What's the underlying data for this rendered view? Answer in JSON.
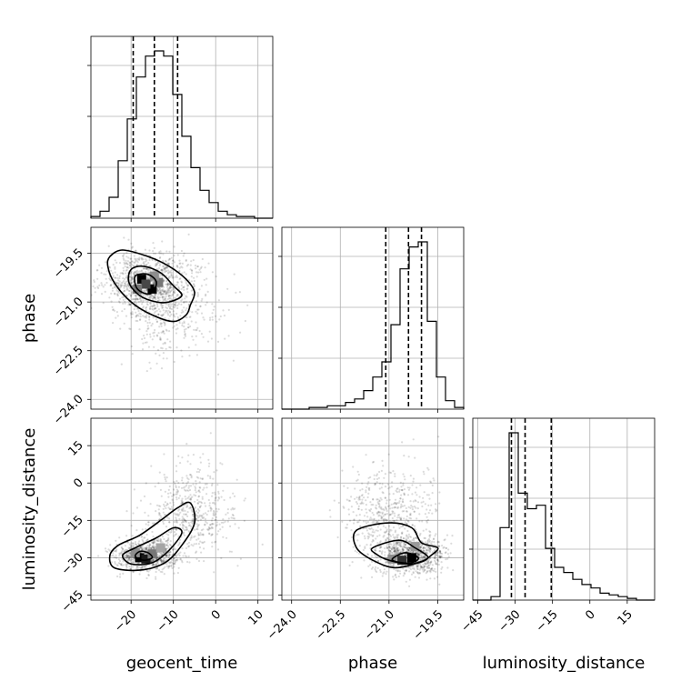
{
  "chart_data": {
    "type": "corner",
    "parameters": [
      "geocent_time",
      "phase",
      "luminosity_distance"
    ],
    "ranges": {
      "geocent_time": [
        -29.5,
        13.5
      ],
      "phase": [
        -24.3,
        -18.7
      ],
      "luminosity_distance": [
        -47.0,
        26.0
      ]
    },
    "ticks": {
      "geocent_time": [
        -20,
        -10,
        0,
        10
      ],
      "phase": [
        -24.0,
        -22.5,
        -21.0,
        -19.5
      ],
      "luminosity_distance": [
        -45,
        -30,
        -15,
        0,
        15
      ]
    },
    "tick_labels": {
      "geocent_time": [
        "−20",
        "−10",
        "0",
        "10"
      ],
      "phase": [
        "−24.0",
        "−22.5",
        "−21.0",
        "−19.5"
      ],
      "luminosity_distance": [
        "−45",
        "−30",
        "−15",
        "0",
        "15"
      ]
    },
    "quantiles": {
      "geocent_time": [
        -19.5,
        -14.5,
        -9.0
      ],
      "phase": [
        -21.1,
        -20.4,
        -20.0
      ],
      "luminosity_distance": [
        -31.5,
        -26.0,
        -15.5
      ]
    },
    "histograms": {
      "geocent_time": {
        "edges": [
          -29.5,
          -27.35,
          -25.2,
          -23.05,
          -20.9,
          -18.75,
          -16.6,
          -14.45,
          -12.3,
          -10.15,
          -8.0,
          -5.85,
          -3.7,
          -1.55,
          0.6,
          2.75,
          4.9,
          7.05,
          9.2,
          11.35,
          13.5
        ],
        "counts": [
          0.01,
          0.04,
          0.12,
          0.33,
          0.57,
          0.81,
          0.93,
          0.96,
          0.93,
          0.71,
          0.47,
          0.29,
          0.16,
          0.09,
          0.04,
          0.02,
          0.01,
          0.01,
          0.0,
          0.0
        ]
      },
      "phase": {
        "edges": [
          -24.3,
          -24.02,
          -23.74,
          -23.46,
          -23.18,
          -22.9,
          -22.62,
          -22.34,
          -22.06,
          -21.78,
          -21.5,
          -21.22,
          -20.94,
          -20.66,
          -20.38,
          -20.1,
          -19.82,
          -19.54,
          -19.26,
          -18.98,
          -18.7
        ],
        "counts": [
          0.0,
          0.0,
          0.0,
          0.01,
          0.01,
          0.02,
          0.02,
          0.04,
          0.06,
          0.11,
          0.19,
          0.28,
          0.5,
          0.83,
          0.96,
          0.99,
          0.52,
          0.19,
          0.05,
          0.01
        ]
      },
      "luminosity_distance": {
        "edges": [
          -47.0,
          -43.35,
          -39.7,
          -36.05,
          -32.4,
          -28.75,
          -25.1,
          -21.45,
          -17.8,
          -14.15,
          -10.5,
          -6.85,
          -3.2,
          0.45,
          4.1,
          7.75,
          11.4,
          15.05,
          18.7,
          22.35,
          26.0
        ],
        "counts": [
          0.0,
          0.0,
          0.02,
          0.42,
          0.97,
          0.62,
          0.53,
          0.55,
          0.3,
          0.19,
          0.16,
          0.12,
          0.09,
          0.07,
          0.04,
          0.03,
          0.02,
          0.01,
          0.0,
          0.0
        ]
      }
    },
    "scatter_2d": {
      "phase_vs_geocent_time": {
        "modes": [
          {
            "x": -16.0,
            "y": -20.4,
            "sx": 5.0,
            "sy": 0.45,
            "w": 0.7
          },
          {
            "x": -11.0,
            "y": -21.2,
            "sx": 6.0,
            "sy": 0.75,
            "w": 0.3
          }
        ],
        "contours": [
          [
            [
              -25.0,
              -19.6
            ],
            [
              -22.0,
              -19.4
            ],
            [
              -16.0,
              -19.6
            ],
            [
              -11.0,
              -19.9
            ],
            [
              -7.0,
              -20.3
            ],
            [
              -5.0,
              -20.7
            ],
            [
              -6.0,
              -21.1
            ],
            [
              -7.0,
              -21.4
            ],
            [
              -10.0,
              -21.6
            ],
            [
              -15.0,
              -21.4
            ],
            [
              -20.0,
              -21.0
            ],
            [
              -24.0,
              -20.4
            ],
            [
              -25.5,
              -19.9
            ]
          ],
          [
            [
              -20.0,
              -20.0
            ],
            [
              -17.0,
              -19.9
            ],
            [
              -13.0,
              -20.1
            ],
            [
              -10.0,
              -20.5
            ],
            [
              -8.0,
              -20.8
            ],
            [
              -11.0,
              -21.0
            ],
            [
              -14.0,
              -21.0
            ],
            [
              -18.0,
              -20.8
            ],
            [
              -20.5,
              -20.4
            ]
          ],
          [
            [
              -19.0,
              -20.2
            ],
            [
              -16.0,
              -20.15
            ],
            [
              -14.0,
              -20.4
            ],
            [
              -15.5,
              -20.75
            ],
            [
              -18.5,
              -20.6
            ]
          ]
        ],
        "hot_cells": [
          [
            -17.5,
            -20.3,
            1.0
          ],
          [
            -15.0,
            -20.6,
            1.0
          ],
          [
            -16.5,
            -20.45,
            0.7
          ],
          [
            -13.5,
            -20.4,
            0.5
          ],
          [
            -18.5,
            -20.6,
            0.5
          ],
          [
            -14.5,
            -20.2,
            0.4
          ]
        ]
      },
      "luminosity_distance_vs_geocent_time": {
        "modes": [
          {
            "x": -16.0,
            "y": -29.0,
            "sx": 4.0,
            "sy": 3.0,
            "w": 0.6
          },
          {
            "x": -6.0,
            "y": -12.0,
            "sx": 5.0,
            "sy": 9.0,
            "w": 0.4
          }
        ],
        "contours": [
          [
            [
              -25.0,
              -29.0
            ],
            [
              -24.0,
              -34.0
            ],
            [
              -18.0,
              -35.0
            ],
            [
              -12.0,
              -32.0
            ],
            [
              -8.0,
              -25.0
            ],
            [
              -5.0,
              -16.0
            ],
            [
              -6.0,
              -8.0
            ],
            [
              -9.0,
              -10.0
            ],
            [
              -13.0,
              -15.0
            ],
            [
              -18.0,
              -21.0
            ],
            [
              -23.0,
              -25.0
            ]
          ],
          [
            [
              -22.0,
              -29.0
            ],
            [
              -20.0,
              -32.5
            ],
            [
              -15.0,
              -32.0
            ],
            [
              -11.0,
              -27.0
            ],
            [
              -8.0,
              -20.0
            ],
            [
              -10.0,
              -18.0
            ],
            [
              -14.0,
              -22.0
            ],
            [
              -19.0,
              -26.0
            ]
          ],
          [
            [
              -19.0,
              -29.5
            ],
            [
              -17.0,
              -31.0
            ],
            [
              -15.0,
              -30.0
            ],
            [
              -16.0,
              -28.0
            ],
            [
              -18.0,
              -27.5
            ]
          ]
        ],
        "hot_cells": [
          [
            -18.0,
            -30.0,
            1.0
          ],
          [
            -16.5,
            -30.5,
            0.9
          ],
          [
            -15.0,
            -28.5,
            0.5
          ],
          [
            -19.0,
            -28.0,
            0.4
          ],
          [
            -13.0,
            -26.0,
            0.3
          ]
        ]
      },
      "luminosity_distance_vs_phase": {
        "modes": [
          {
            "x": -20.3,
            "y": -29.0,
            "sx": 0.5,
            "sy": 3.5,
            "w": 0.6
          },
          {
            "x": -21.0,
            "y": -14.0,
            "sx": 0.7,
            "sy": 10.0,
            "w": 0.4
          }
        ],
        "contours": [
          [
            [
              -22.0,
              -19.0
            ],
            [
              -21.0,
              -16.0
            ],
            [
              -20.3,
              -18.0
            ],
            [
              -20.0,
              -24.0
            ],
            [
              -19.5,
              -26.0
            ],
            [
              -19.7,
              -29.0
            ],
            [
              -20.0,
              -31.5
            ],
            [
              -20.8,
              -34.0
            ],
            [
              -21.5,
              -31.0
            ],
            [
              -22.0,
              -26.0
            ]
          ],
          [
            [
              -21.5,
              -26.0
            ],
            [
              -20.7,
              -23.0
            ],
            [
              -20.2,
              -26.0
            ],
            [
              -19.8,
              -30.0
            ],
            [
              -20.3,
              -32.5
            ],
            [
              -21.0,
              -31.0
            ],
            [
              -21.4,
              -28.5
            ]
          ],
          [
            [
              -20.9,
              -30.5
            ],
            [
              -20.5,
              -28.0
            ],
            [
              -20.1,
              -30.0
            ],
            [
              -20.3,
              -32.0
            ],
            [
              -20.7,
              -31.8
            ]
          ]
        ],
        "hot_cells": [
          [
            -20.3,
            -30.0,
            1.0
          ],
          [
            -20.6,
            -31.0,
            0.8
          ],
          [
            -20.2,
            -25.5,
            0.35
          ],
          [
            -20.9,
            -30.5,
            0.4
          ]
        ]
      }
    }
  }
}
